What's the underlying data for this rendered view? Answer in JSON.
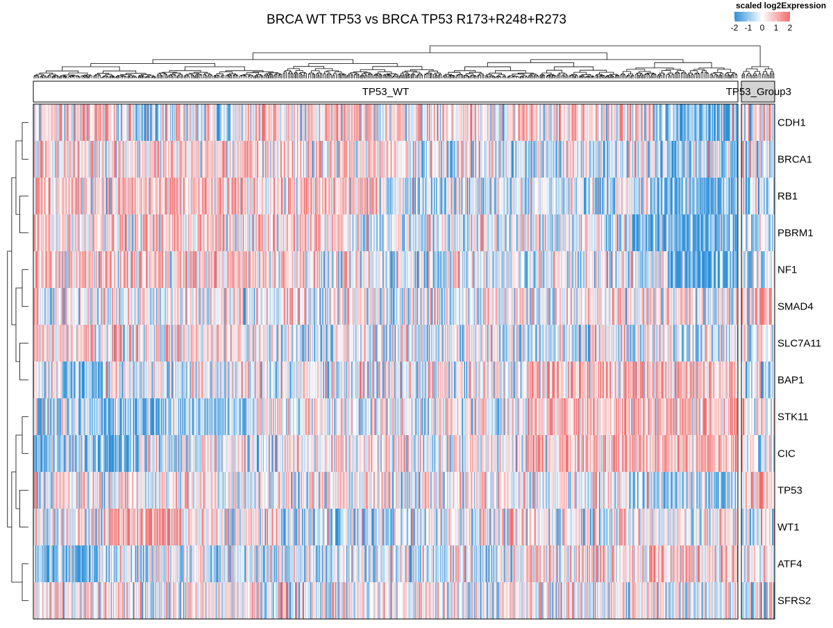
{
  "chart_data": {
    "type": "heatmap",
    "title": "BRCA WT TP53 vs BRCA TP53 R173+R248+R273",
    "legend": {
      "title": "scaled log2Expression",
      "ticks": [
        "-2",
        "-1",
        "0",
        "1",
        "2"
      ],
      "range": [
        -2,
        2
      ],
      "placement": "top-right"
    },
    "color_scale": {
      "low": "#2f8fd8",
      "mid": "#ffffff",
      "high": "#f26b6b"
    },
    "groups": [
      {
        "label": "TP53_WT",
        "fill": "#ffffff"
      },
      {
        "label": "TP53_Group3",
        "fill": "#d3d3d3"
      }
    ],
    "genes": [
      "CDH1",
      "BRCA1",
      "RB1",
      "PBRM1",
      "NF1",
      "SMAD4",
      "SLC7A11",
      "BAP1",
      "STK11",
      "CIC",
      "TP53",
      "WT1",
      "ATF4",
      "SFRS2"
    ],
    "row_dendrogram": [
      [
        7,
        8,
        9,
        10,
        0.6
      ],
      [
        15,
        16,
        17,
        18,
        0.55
      ],
      [
        11,
        12,
        19,
        20,
        0.7
      ],
      [
        6,
        14,
        21,
        22,
        0.8
      ],
      [
        2,
        3,
        4,
        5,
        0.85
      ],
      [
        0,
        1,
        24,
        25,
        0.9
      ],
      [
        13,
        23,
        26,
        27,
        1.0
      ]
    ],
    "grid": false
  }
}
